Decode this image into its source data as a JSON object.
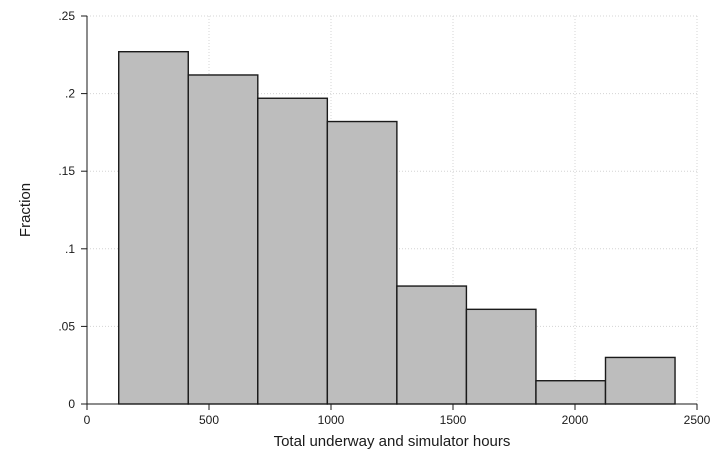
{
  "chart_data": {
    "type": "bar",
    "subtype": "histogram",
    "xlabel": "Total underway and simulator hours",
    "ylabel": "Fraction",
    "xlim": [
      0,
      2500
    ],
    "ylim": [
      0,
      0.25
    ],
    "x_ticks": [
      0,
      500,
      1000,
      1500,
      2000,
      2500
    ],
    "x_tick_labels": [
      "0",
      "500",
      "1000",
      "1500",
      "2000",
      "2500"
    ],
    "y_ticks": [
      0,
      0.05,
      0.1,
      0.15,
      0.2,
      0.25
    ],
    "y_tick_labels": [
      "0",
      ".05",
      ".1",
      ".15",
      ".2",
      ".25"
    ],
    "grid": true,
    "bins": [
      {
        "start": 130,
        "end": 415,
        "value": 0.227
      },
      {
        "start": 415,
        "end": 700,
        "value": 0.212
      },
      {
        "start": 700,
        "end": 985,
        "value": 0.197
      },
      {
        "start": 985,
        "end": 1270,
        "value": 0.182
      },
      {
        "start": 1270,
        "end": 1555,
        "value": 0.076
      },
      {
        "start": 1555,
        "end": 1840,
        "value": 0.061
      },
      {
        "start": 1840,
        "end": 2125,
        "value": 0.015
      },
      {
        "start": 2125,
        "end": 2410,
        "value": 0.03
      }
    ],
    "colors": {
      "bar_fill": "#bdbdbd",
      "bar_stroke": "#1a1a1a"
    }
  }
}
